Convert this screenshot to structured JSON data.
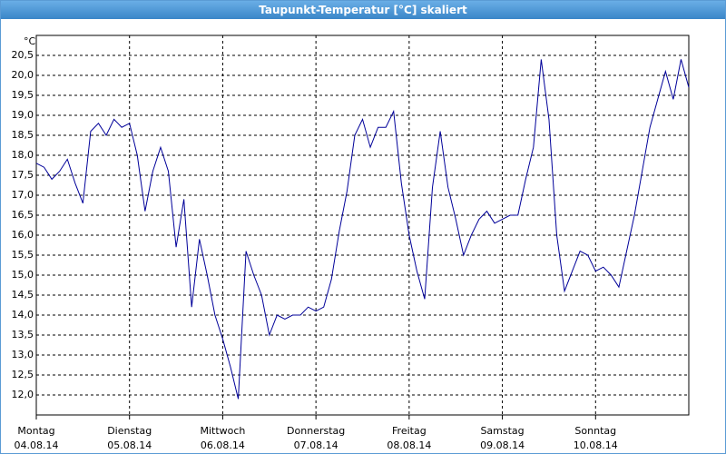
{
  "chart_data": {
    "type": "line",
    "title": "Taupunkt-Temperatur [°C] skaliert",
    "y_unit": "°C",
    "categories": [
      [
        "Montag",
        "04.08.14"
      ],
      null,
      null,
      null,
      null,
      null,
      null,
      null,
      null,
      null,
      null,
      null,
      [
        "Dienstag",
        "05.08.14"
      ],
      null,
      null,
      null,
      null,
      null,
      null,
      null,
      null,
      null,
      null,
      null,
      [
        "Mittwoch",
        "06.08.14"
      ],
      null,
      null,
      null,
      null,
      null,
      null,
      null,
      null,
      null,
      null,
      null,
      [
        "Donnerstag",
        "07.08.14"
      ],
      null,
      null,
      null,
      null,
      null,
      null,
      null,
      null,
      null,
      null,
      null,
      [
        "Freitag",
        "08.08.14"
      ],
      null,
      null,
      null,
      null,
      null,
      null,
      null,
      null,
      null,
      null,
      null,
      [
        "Samstag",
        "09.08.14"
      ],
      null,
      null,
      null,
      null,
      null,
      null,
      null,
      null,
      null,
      null,
      null,
      [
        "Sonntag",
        "10.08.14"
      ],
      null,
      null,
      null,
      null,
      null,
      null,
      null,
      null,
      null,
      null,
      null,
      null
    ],
    "series": [
      {
        "color": "#000099",
        "values": [
          17.8,
          17.7,
          17.4,
          17.6,
          17.9,
          17.3,
          16.8,
          18.6,
          18.8,
          18.5,
          18.9,
          18.7,
          18.8,
          18.0,
          16.6,
          17.6,
          18.2,
          17.6,
          15.7,
          16.9,
          14.2,
          15.9,
          15.0,
          14.0,
          13.4,
          12.7,
          11.9,
          15.6,
          15.0,
          14.5,
          13.5,
          14.0,
          13.9,
          14.0,
          14.0,
          14.2,
          14.1,
          14.2,
          14.9,
          16.1,
          17.1,
          18.5,
          18.9,
          18.2,
          18.7,
          18.7,
          19.1,
          17.3,
          16.0,
          15.1,
          14.4,
          17.2,
          18.6,
          17.2,
          16.4,
          15.5,
          16.0,
          16.4,
          16.6,
          16.3,
          16.4,
          16.5,
          16.5,
          17.4,
          18.2,
          20.4,
          18.9,
          16.0,
          14.6,
          15.1,
          15.6,
          15.5,
          15.1,
          15.2,
          15.0,
          14.7,
          15.6,
          16.5,
          17.6,
          18.7,
          19.4,
          20.1,
          19.4,
          20.4,
          19.7
        ]
      }
    ],
    "ylim": [
      11.5,
      21.0
    ],
    "yticks": [
      {
        "value": 12.0,
        "label": "12,0"
      },
      {
        "value": 12.5,
        "label": "12,5"
      },
      {
        "value": 13.0,
        "label": "13,0"
      },
      {
        "value": 13.5,
        "label": "13,5"
      },
      {
        "value": 14.0,
        "label": "14,0"
      },
      {
        "value": 14.5,
        "label": "14,5"
      },
      {
        "value": 15.0,
        "label": "15,0"
      },
      {
        "value": 15.5,
        "label": "15,5"
      },
      {
        "value": 16.0,
        "label": "16,0"
      },
      {
        "value": 16.5,
        "label": "16,5"
      },
      {
        "value": 17.0,
        "label": "17,0"
      },
      {
        "value": 17.5,
        "label": "17,5"
      },
      {
        "value": 18.0,
        "label": "18,0"
      },
      {
        "value": 18.5,
        "label": "18,5"
      },
      {
        "value": 19.0,
        "label": "19,0"
      },
      {
        "value": 19.5,
        "label": "19,5"
      },
      {
        "value": 20.0,
        "label": "20,0"
      },
      {
        "value": 20.5,
        "label": "20,5"
      }
    ],
    "grid": true
  }
}
